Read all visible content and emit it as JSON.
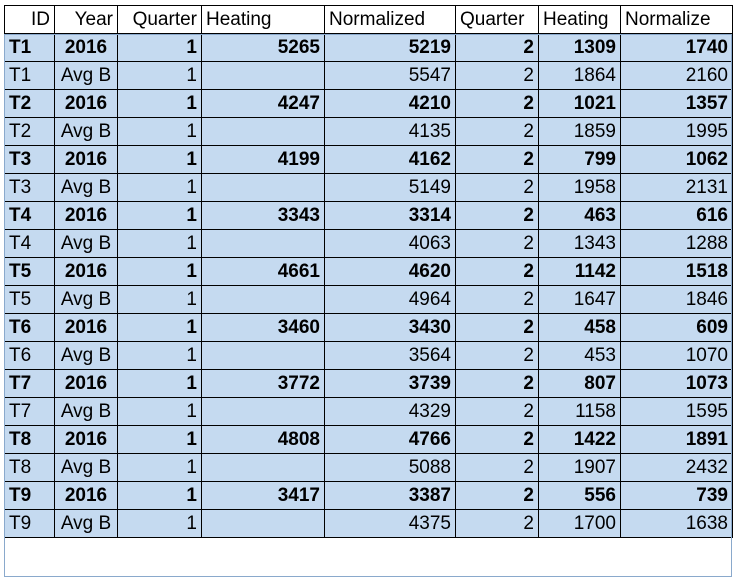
{
  "headers": [
    "ID",
    "Year",
    "Quarter",
    "Heating",
    "Normalized",
    "Quarter",
    "Heating",
    "Normalize"
  ],
  "rows": [
    {
      "id": "T1",
      "year": "2016",
      "q1": "1",
      "heat1": "5265",
      "norm1": "5219",
      "q2": "2",
      "heat2": "1309",
      "norm2": "1740",
      "bold": true
    },
    {
      "id": "T1",
      "year": "Avg B",
      "q1": "1",
      "heat1": "",
      "norm1": "5547",
      "q2": "2",
      "heat2": "1864",
      "norm2": "2160",
      "bold": false
    },
    {
      "id": "T2",
      "year": "2016",
      "q1": "1",
      "heat1": "4247",
      "norm1": "4210",
      "q2": "2",
      "heat2": "1021",
      "norm2": "1357",
      "bold": true
    },
    {
      "id": "T2",
      "year": "Avg B",
      "q1": "1",
      "heat1": "",
      "norm1": "4135",
      "q2": "2",
      "heat2": "1859",
      "norm2": "1995",
      "bold": false
    },
    {
      "id": "T3",
      "year": "2016",
      "q1": "1",
      "heat1": "4199",
      "norm1": "4162",
      "q2": "2",
      "heat2": "799",
      "norm2": "1062",
      "bold": true
    },
    {
      "id": "T3",
      "year": "Avg B",
      "q1": "1",
      "heat1": "",
      "norm1": "5149",
      "q2": "2",
      "heat2": "1958",
      "norm2": "2131",
      "bold": false
    },
    {
      "id": "T4",
      "year": "2016",
      "q1": "1",
      "heat1": "3343",
      "norm1": "3314",
      "q2": "2",
      "heat2": "463",
      "norm2": "616",
      "bold": true
    },
    {
      "id": "T4",
      "year": "Avg B",
      "q1": "1",
      "heat1": "",
      "norm1": "4063",
      "q2": "2",
      "heat2": "1343",
      "norm2": "1288",
      "bold": false
    },
    {
      "id": "T5",
      "year": "2016",
      "q1": "1",
      "heat1": "4661",
      "norm1": "4620",
      "q2": "2",
      "heat2": "1142",
      "norm2": "1518",
      "bold": true
    },
    {
      "id": "T5",
      "year": "Avg B",
      "q1": "1",
      "heat1": "",
      "norm1": "4964",
      "q2": "2",
      "heat2": "1647",
      "norm2": "1846",
      "bold": false
    },
    {
      "id": "T6",
      "year": "2016",
      "q1": "1",
      "heat1": "3460",
      "norm1": "3430",
      "q2": "2",
      "heat2": "458",
      "norm2": "609",
      "bold": true
    },
    {
      "id": "T6",
      "year": "Avg B",
      "q1": "1",
      "heat1": "",
      "norm1": "3564",
      "q2": "2",
      "heat2": "453",
      "norm2": "1070",
      "bold": false
    },
    {
      "id": "T7",
      "year": "2016",
      "q1": "1",
      "heat1": "3772",
      "norm1": "3739",
      "q2": "2",
      "heat2": "807",
      "norm2": "1073",
      "bold": true
    },
    {
      "id": "T7",
      "year": "Avg B",
      "q1": "1",
      "heat1": "",
      "norm1": "4329",
      "q2": "2",
      "heat2": "1158",
      "norm2": "1595",
      "bold": false
    },
    {
      "id": "T8",
      "year": "2016",
      "q1": "1",
      "heat1": "4808",
      "norm1": "4766",
      "q2": "2",
      "heat2": "1422",
      "norm2": "1891",
      "bold": true
    },
    {
      "id": "T8",
      "year": "Avg B",
      "q1": "1",
      "heat1": "",
      "norm1": "5088",
      "q2": "2",
      "heat2": "1907",
      "norm2": "2432",
      "bold": false
    },
    {
      "id": "T9",
      "year": "2016",
      "q1": "1",
      "heat1": "3417",
      "norm1": "3387",
      "q2": "2",
      "heat2": "556",
      "norm2": "739",
      "bold": true
    },
    {
      "id": "T9",
      "year": "Avg B",
      "q1": "1",
      "heat1": "",
      "norm1": "4375",
      "q2": "2",
      "heat2": "1700",
      "norm2": "1638",
      "bold": false
    }
  ]
}
